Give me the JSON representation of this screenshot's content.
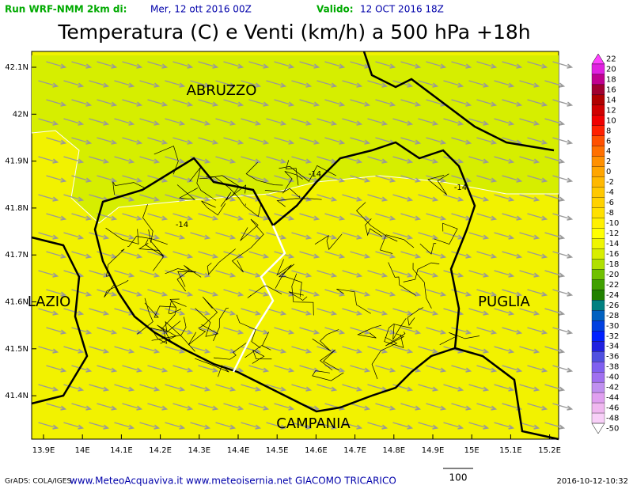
{
  "header": {
    "run_label": "Run WRF-NMM 2km di:",
    "run_date": "Mer, 12 ott 2016 00Z",
    "valid_label": "Valido:",
    "valid_date": "12 OCT 2016 18Z"
  },
  "title": "Temperatura (C) e Venti (km/h) a 500 hPa +18h",
  "regions": [
    "ABRUZZO",
    "LAZIO",
    "PUGLIA",
    "CAMPANIA"
  ],
  "contour_labels": [
    "-14",
    "-14",
    "-14"
  ],
  "lat_ticks": [
    "42.1N",
    "42N",
    "41.9N",
    "41.8N",
    "41.7N",
    "41.6N",
    "41.5N",
    "41.4N"
  ],
  "lon_ticks": [
    "13.9E",
    "14E",
    "14.1E",
    "14.2E",
    "14.3E",
    "14.4E",
    "14.5E",
    "14.6E",
    "14.7E",
    "14.8E",
    "14.9E",
    "15E",
    "15.1E",
    "15.2E"
  ],
  "colorbar_labels": [
    "22",
    "20",
    "18",
    "16",
    "14",
    "12",
    "10",
    "8",
    "6",
    "4",
    "2",
    "0",
    "-2",
    "-4",
    "-6",
    "-8",
    "-10",
    "-12",
    "-14",
    "-16",
    "-18",
    "-20",
    "-22",
    "-24",
    "-26",
    "-28",
    "-30",
    "-32",
    "-34",
    "-36",
    "-38",
    "-40",
    "-42",
    "-44",
    "-46",
    "-48",
    "-50"
  ],
  "footer": {
    "credit": "GrADS: COLA/IGES",
    "sites": "www.MeteoAcquaviva.it www.meteoisernia.net GIACOMO TRICARICO",
    "scale": "100",
    "timestamp": "2016-10-12-10:32"
  }
}
